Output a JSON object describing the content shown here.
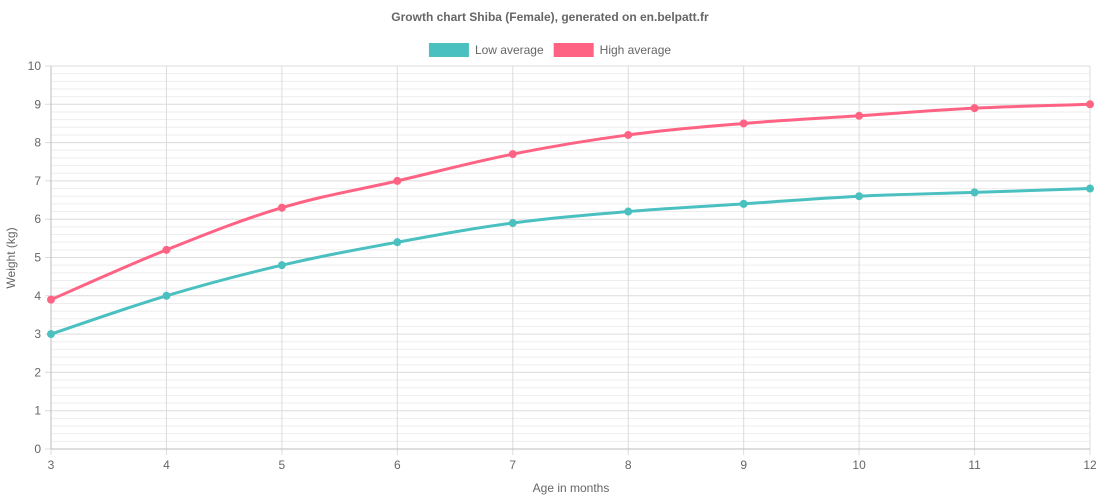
{
  "chart_data": {
    "type": "line",
    "title": "Growth chart Shiba (Female), generated on en.belpatt.fr",
    "xlabel": "Age in months",
    "ylabel": "Weight (kg)",
    "x": [
      3,
      4,
      5,
      6,
      7,
      8,
      9,
      10,
      11,
      12
    ],
    "xlim": [
      3,
      12
    ],
    "ylim": [
      0,
      10
    ],
    "yticks": [
      0,
      1,
      2,
      3,
      4,
      5,
      6,
      7,
      8,
      9,
      10
    ],
    "grid": true,
    "legend_position": "top",
    "series": [
      {
        "name": "Low average",
        "color": "#4bc0c0",
        "values": [
          3,
          4,
          4.8,
          5.4,
          5.9,
          6.2,
          6.4,
          6.6,
          6.7,
          6.8
        ]
      },
      {
        "name": "High average",
        "color": "#ff6384",
        "values": [
          3.9,
          5.2,
          6.3,
          7,
          7.7,
          8.2,
          8.5,
          8.7,
          8.9,
          9
        ]
      }
    ]
  }
}
